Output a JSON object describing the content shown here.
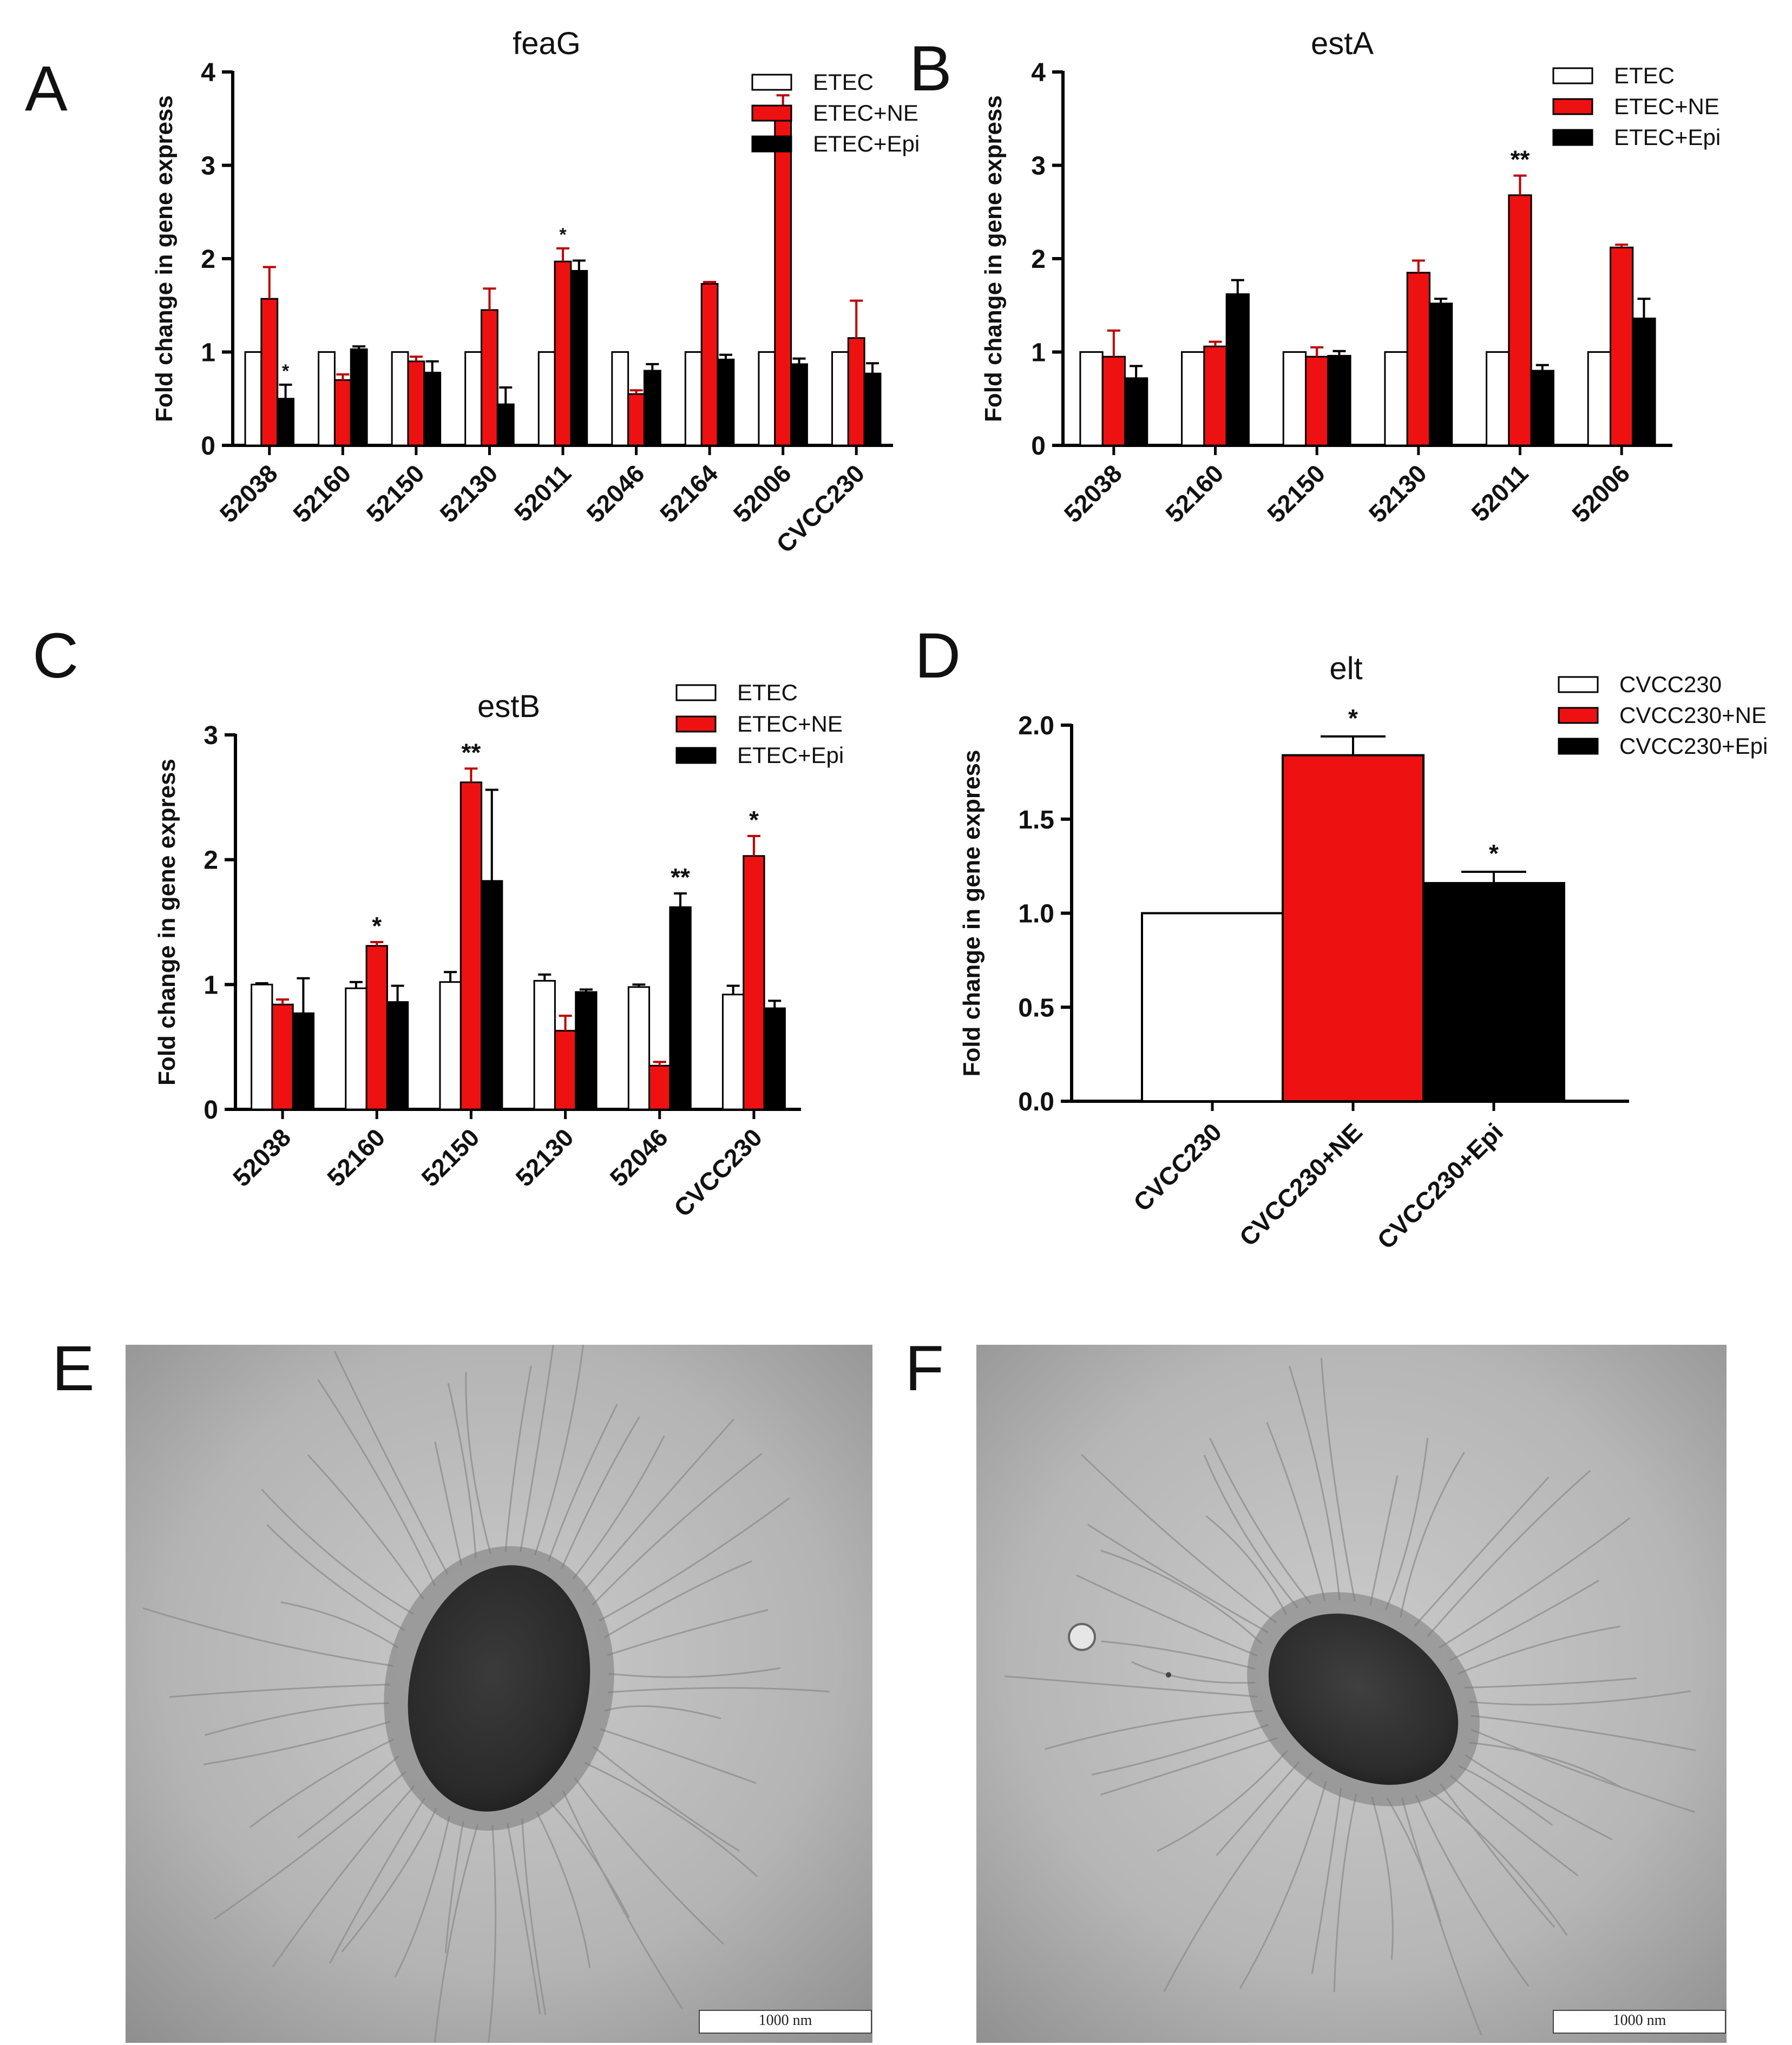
{
  "colors": {
    "etec": "#ffffff",
    "ne": "#ee1111",
    "epi": "#000000",
    "axis": "#000000"
  },
  "panels": {
    "A": "A",
    "B": "B",
    "C": "C",
    "D": "D",
    "E": "E",
    "F": "F"
  },
  "chart_data": [
    {
      "id": "A",
      "type": "bar",
      "title": "feaG",
      "ylabel": "Fold change in  gene express",
      "ylim": [
        0,
        4
      ],
      "yticks": [
        "0",
        "1",
        "2",
        "3",
        "4"
      ],
      "categories": [
        "52038",
        "52160",
        "52150",
        "52130",
        "52011",
        "52046",
        "52164",
        "52006",
        "CVCC230"
      ],
      "series": [
        {
          "name": "ETEC",
          "color": "#ffffff",
          "values": [
            1,
            1,
            1,
            1,
            1,
            1,
            1,
            1,
            1
          ],
          "errors": [
            0,
            0,
            0,
            0,
            0,
            0,
            0,
            0,
            0
          ],
          "sig": [
            "",
            "",
            "",
            "",
            "",
            "",
            "",
            "",
            ""
          ]
        },
        {
          "name": "ETEC+NE",
          "color": "#ee1111",
          "values": [
            1.57,
            0.7,
            0.9,
            1.45,
            1.97,
            0.55,
            1.73,
            3.5,
            1.15
          ],
          "errors": [
            0.34,
            0.06,
            0.05,
            0.23,
            0.14,
            0.04,
            0.02,
            0.25,
            0.4
          ],
          "sig": [
            "",
            "",
            "",
            "",
            "*",
            "",
            "",
            "**",
            ""
          ]
        },
        {
          "name": "ETEC+Epi",
          "color": "#000000",
          "values": [
            0.5,
            1.03,
            0.78,
            0.44,
            1.87,
            0.8,
            0.92,
            0.87,
            0.77
          ],
          "errors": [
            0.15,
            0.03,
            0.12,
            0.18,
            0.11,
            0.07,
            0.05,
            0.06,
            0.11
          ],
          "sig": [
            "*",
            "",
            "",
            "",
            "",
            "",
            "",
            "",
            ""
          ]
        }
      ],
      "legend": "top-right"
    },
    {
      "id": "B",
      "type": "bar",
      "title": "estA",
      "ylabel": "Fold change in  gene express",
      "ylim": [
        0,
        4
      ],
      "yticks": [
        "0",
        "1",
        "2",
        "3",
        "4"
      ],
      "categories": [
        "52038",
        "52160",
        "52150",
        "52130",
        "52011",
        "52006"
      ],
      "series": [
        {
          "name": "ETEC",
          "color": "#ffffff",
          "values": [
            1,
            1,
            1,
            1,
            1,
            1
          ],
          "errors": [
            0,
            0,
            0,
            0,
            0,
            0
          ],
          "sig": [
            "",
            "",
            "",
            "",
            "",
            ""
          ]
        },
        {
          "name": "ETEC+NE",
          "color": "#ee1111",
          "values": [
            0.95,
            1.06,
            0.95,
            1.85,
            2.68,
            2.12
          ],
          "errors": [
            0.28,
            0.05,
            0.1,
            0.13,
            0.21,
            0.03
          ],
          "sig": [
            "",
            "",
            "",
            "",
            "**",
            ""
          ]
        },
        {
          "name": "ETEC+Epi",
          "color": "#000000",
          "values": [
            0.72,
            1.62,
            0.96,
            1.52,
            0.8,
            1.36
          ],
          "errors": [
            0.13,
            0.15,
            0.05,
            0.05,
            0.06,
            0.21
          ],
          "sig": [
            "",
            "",
            "",
            "",
            "",
            ""
          ]
        }
      ],
      "legend": "top-right"
    },
    {
      "id": "C",
      "type": "bar",
      "title": "estB",
      "ylabel": "Fold change in  gene express",
      "ylim": [
        0,
        3
      ],
      "yticks": [
        "0",
        "1",
        "2",
        "3"
      ],
      "categories": [
        "52038",
        "52160",
        "52150",
        "52130",
        "52046",
        "CVCC230"
      ],
      "series": [
        {
          "name": "ETEC",
          "color": "#ffffff",
          "values": [
            1.0,
            0.97,
            1.02,
            1.03,
            0.98,
            0.92
          ],
          "errors": [
            0.01,
            0.05,
            0.08,
            0.05,
            0.02,
            0.07
          ],
          "sig": [
            "",
            "",
            "",
            "",
            "",
            ""
          ]
        },
        {
          "name": "ETEC+NE",
          "color": "#ee1111",
          "values": [
            0.84,
            1.31,
            2.62,
            0.63,
            0.35,
            2.03
          ],
          "errors": [
            0.04,
            0.03,
            0.11,
            0.12,
            0.03,
            0.16
          ],
          "sig": [
            "",
            "*",
            "**",
            "",
            "",
            "*"
          ]
        },
        {
          "name": "ETEC+Epi",
          "color": "#000000",
          "values": [
            0.77,
            0.86,
            1.83,
            0.94,
            1.62,
            0.81
          ],
          "errors": [
            0.28,
            0.13,
            0.73,
            0.02,
            0.11,
            0.06
          ],
          "sig": [
            "",
            "",
            "",
            "",
            "**",
            ""
          ]
        }
      ],
      "legend": "top-right"
    },
    {
      "id": "D",
      "type": "bar",
      "title": "elt",
      "ylabel": "Fold change in  gene express",
      "ylim": [
        0,
        2.0
      ],
      "yticks": [
        "0.0",
        "0.5",
        "1.0",
        "1.5",
        "2.0"
      ],
      "categories": [
        "CVCC230",
        "CVCC230+NE",
        "CVCC230+Epi"
      ],
      "values": [
        1.0,
        1.84,
        1.16
      ],
      "errors": [
        0,
        0.1,
        0.06
      ],
      "sig": [
        "",
        "*",
        "*"
      ],
      "bar_colors": [
        "#ffffff",
        "#ee1111",
        "#000000"
      ],
      "legend_names": [
        "CVCC230",
        "CVCC230+NE",
        "CVCC230+Epi"
      ],
      "legend": "top-right"
    }
  ],
  "micrographs": [
    {
      "id": "E",
      "scale_bar": "1000  nm"
    },
    {
      "id": "F",
      "scale_bar": "1000  nm"
    }
  ]
}
